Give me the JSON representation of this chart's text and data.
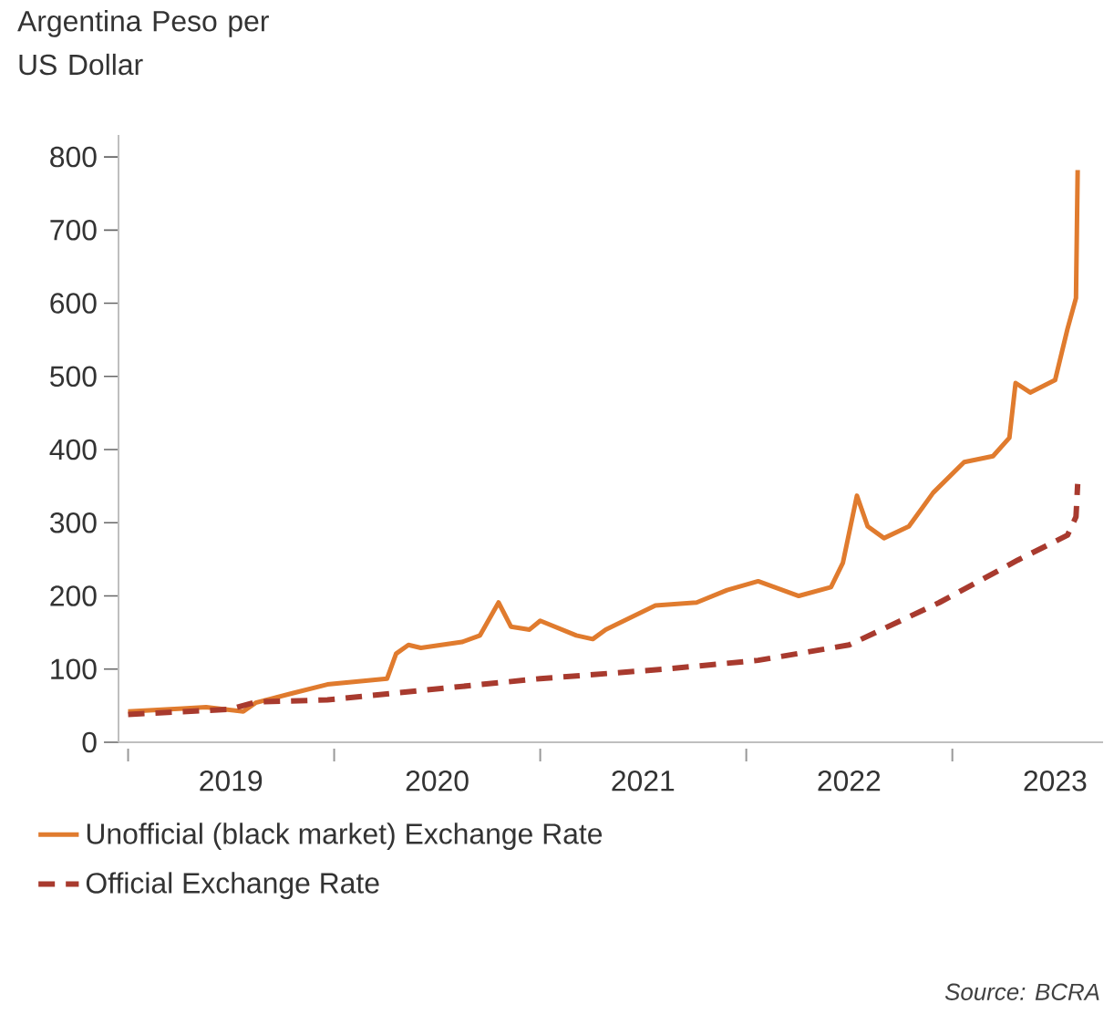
{
  "chart_data": {
    "type": "line",
    "ylabel": "Argentina Peso per US Dollar",
    "annotations": [
      "Source: BCRA"
    ],
    "xlim": [
      "2018-12-15",
      "2023-09-25"
    ],
    "xticks": [
      {
        "value": "2019-01-01",
        "label": null
      },
      {
        "value": "2019-07-02",
        "label": "2019"
      },
      {
        "value": "2020-01-01",
        "label": null
      },
      {
        "value": "2020-07-02",
        "label": "2020"
      },
      {
        "value": "2021-01-01",
        "label": null
      },
      {
        "value": "2021-07-02",
        "label": "2021"
      },
      {
        "value": "2022-01-01",
        "label": null
      },
      {
        "value": "2022-07-02",
        "label": "2022"
      },
      {
        "value": "2023-01-01",
        "label": null
      },
      {
        "value": "2023-07-02",
        "label": "2023"
      }
    ],
    "ylim": [
      0,
      830
    ],
    "yticks": [
      0,
      100,
      200,
      300,
      400,
      500,
      600,
      700,
      800
    ],
    "legend": "bottom",
    "series": [
      {
        "name": "Unofficial (black market) Exchange Rate",
        "color": "#e07b2e",
        "line_style": "solid",
        "x": [
          "2019-01-01",
          "2019-04-08",
          "2019-05-19",
          "2019-07-24",
          "2019-08-15",
          "2019-10-19",
          "2019-12-20",
          "2020-04-04",
          "2020-04-20",
          "2020-05-12",
          "2020-06-03",
          "2020-08-15",
          "2020-09-16",
          "2020-10-19",
          "2020-11-10",
          "2020-12-13",
          "2021-01-01",
          "2021-03-06",
          "2021-04-04",
          "2021-04-27",
          "2021-07-24",
          "2021-10-05",
          "2021-11-28",
          "2022-01-22",
          "2022-04-04",
          "2022-05-31",
          "2022-06-21",
          "2022-07-16",
          "2022-08-04",
          "2022-09-02",
          "2022-10-16",
          "2022-11-28",
          "2023-01-22",
          "2023-03-14",
          "2023-04-12",
          "2023-04-23",
          "2023-05-19",
          "2023-07-02",
          "2023-07-24",
          "2023-08-08",
          "2023-08-11"
        ],
        "values": [
          42,
          46,
          48,
          42,
          54,
          67,
          79,
          87,
          121,
          133,
          129,
          137,
          146,
          191,
          158,
          154,
          166,
          146,
          141,
          154,
          187,
          191,
          208,
          220,
          200,
          212,
          245,
          337,
          295,
          279,
          295,
          341,
          383,
          391,
          416,
          491,
          478,
          495,
          565,
          607,
          782
        ]
      },
      {
        "name": "Official Exchange Rate",
        "color": "#a83a2e",
        "line_style": "dashed",
        "x": [
          "2019-01-01",
          "2019-07-01",
          "2019-08-15",
          "2019-12-20",
          "2021-01-01",
          "2021-08-11",
          "2022-01-22",
          "2022-07-02",
          "2022-12-09",
          "2023-04-27",
          "2023-07-24",
          "2023-08-08",
          "2023-08-11"
        ],
        "values": [
          38,
          45,
          55,
          58,
          87,
          100,
          112,
          133,
          191,
          249,
          283,
          308,
          353
        ]
      }
    ]
  }
}
